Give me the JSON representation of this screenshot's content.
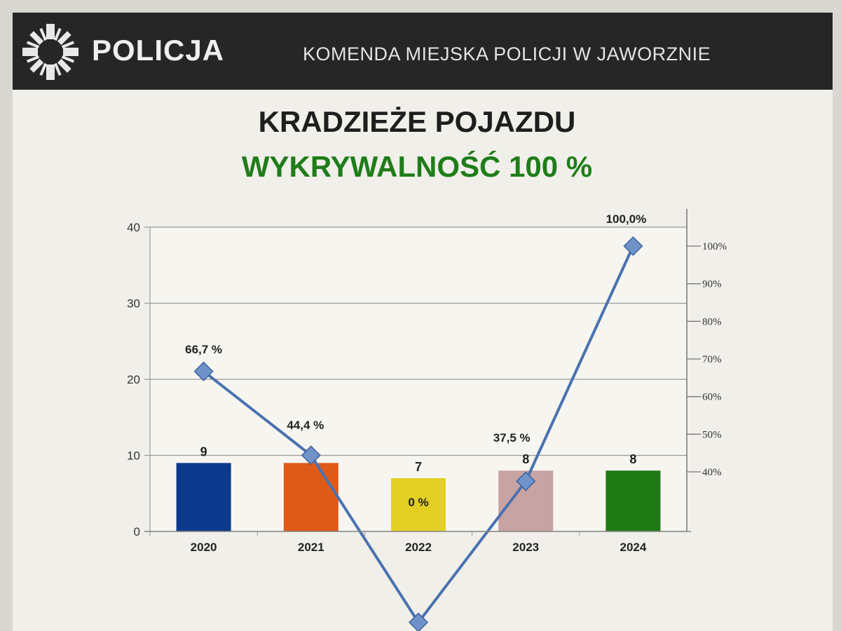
{
  "header": {
    "brand": "POLICJA",
    "unit": "KOMENDA MIEJSKA POLICJI W JAWORZNIE",
    "logo_icon": "police-star-icon"
  },
  "chart_data": {
    "type": "bar",
    "title": "KRADZIEŻE POJAZDU",
    "subtitle": "WYKRYWALNOŚĆ 100 %",
    "categories": [
      "2020",
      "2021",
      "2022",
      "2023",
      "2024"
    ],
    "series": [
      {
        "type": "bar",
        "axis": "left",
        "values": [
          9,
          9,
          7,
          8,
          8
        ],
        "labels": [
          "9",
          "9",
          "7",
          "8",
          "8"
        ],
        "colors": [
          "#0b3a8c",
          "#de5a16",
          "#e3cf23",
          "#c8a3a3",
          "#1f7a16"
        ]
      },
      {
        "type": "line",
        "axis": "right",
        "values": [
          66.7,
          44.4,
          0,
          37.5,
          100
        ],
        "labels": [
          "66,7 %",
          "44,4 %",
          "0 %",
          "37,5 %",
          "100,0%"
        ],
        "color": "#4a72b0",
        "marker": "diamond"
      }
    ],
    "y_left": {
      "range": [
        0,
        40
      ],
      "ticks": [
        "0",
        "10",
        "20",
        "30",
        "40"
      ]
    },
    "y_right": {
      "ticks": [
        "40%",
        "50%",
        "60%",
        "70%",
        "80%",
        "90%",
        "100%"
      ]
    },
    "grid": true,
    "legend": "none"
  }
}
